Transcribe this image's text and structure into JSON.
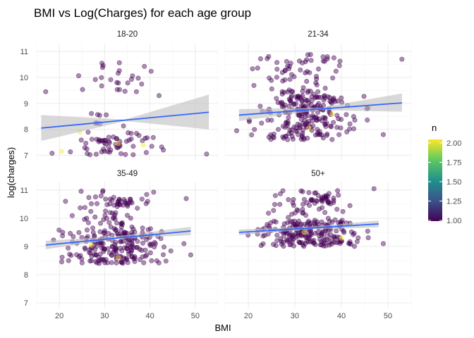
{
  "chart_data": {
    "type": "scatter",
    "title": "BMI vs Log(Charges) for each age group",
    "xlabel": "BMI",
    "ylabel": "log(charges)",
    "xlim": [
      15,
      55
    ],
    "ylim": [
      6.8,
      11.3
    ],
    "x_ticks": [
      "20",
      "30",
      "40",
      "50"
    ],
    "y_ticks": [
      "7",
      "8",
      "9",
      "10",
      "11"
    ],
    "grid": true,
    "legend": {
      "title": "n",
      "position": "right",
      "ticks": [
        "2.00",
        "1.75",
        "1.50",
        "1.25",
        "1.00"
      ],
      "range": [
        1,
        2
      ],
      "colors": [
        "#440154",
        "#3b528b",
        "#21918c",
        "#5ec962",
        "#fde725"
      ]
    },
    "point_color": "#440154",
    "point_highlight_color": "#fde725",
    "fit_color": "#3366ff",
    "band_color": "#bebebe",
    "panels": [
      {
        "name": "18-20",
        "trend": {
          "x": [
            16,
            53
          ],
          "y": [
            8.05,
            8.66
          ]
        },
        "band": {
          "lower": [
            7.55,
            8.32,
            8.0
          ],
          "upper": [
            8.55,
            8.38,
            9.34
          ]
        },
        "clusters": [
          {
            "n": 60,
            "x": [
              17,
              48
            ],
            "y": [
              7.0,
              7.9
            ],
            "seed": 11
          },
          {
            "n": 24,
            "x": [
              20,
              46
            ],
            "y": [
              9.4,
              10.6
            ],
            "seed": 12
          },
          {
            "n": 8,
            "x": [
              18,
              40
            ],
            "y": [
              8.1,
              8.9
            ],
            "seed": 13
          }
        ],
        "points": [
          [
            17,
            9.45
          ],
          [
            52.5,
            7.05
          ],
          [
            42,
            9.3
          ],
          [
            37,
            9.45
          ]
        ],
        "highlights": [
          [
            20.5,
            7.15
          ],
          [
            24.5,
            7.9
          ],
          [
            33,
            7.45
          ],
          [
            38.5,
            7.4
          ]
        ]
      },
      {
        "name": "21-34",
        "trend": {
          "x": [
            18,
            53
          ],
          "y": [
            8.55,
            9.02
          ]
        },
        "band": {
          "lower": [
            8.32,
            8.74,
            8.68
          ],
          "upper": [
            8.78,
            8.84,
            9.38
          ]
        },
        "clusters": [
          {
            "n": 210,
            "x": [
              18,
              48
            ],
            "y": [
              7.6,
              9.3
            ],
            "seed": 21
          },
          {
            "n": 55,
            "x": [
              18,
              46
            ],
            "y": [
              9.5,
              10.9
            ],
            "seed": 22
          },
          {
            "n": 25,
            "x": [
              20,
              45
            ],
            "y": [
              9.0,
              9.5
            ],
            "seed": 23
          }
        ],
        "points": [
          [
            53,
            10.7
          ],
          [
            49,
            7.8
          ],
          [
            17.5,
            7.95
          ]
        ],
        "highlights": [
          [
            33,
            8.05
          ],
          [
            38,
            8.6
          ]
        ]
      },
      {
        "name": "35-49",
        "trend": {
          "x": [
            17,
            49
          ],
          "y": [
            9.05,
            9.55
          ]
        },
        "band": {
          "lower": [
            8.9,
            9.27,
            9.4
          ],
          "upper": [
            9.2,
            9.37,
            9.7
          ]
        },
        "clusters": [
          {
            "n": 200,
            "x": [
              17,
              48
            ],
            "y": [
              8.4,
              9.6
            ],
            "seed": 31
          },
          {
            "n": 60,
            "x": [
              17,
              46
            ],
            "y": [
              9.6,
              11.0
            ],
            "seed": 32
          },
          {
            "n": 20,
            "x": [
              30,
              40
            ],
            "y": [
              10.45,
              10.7
            ],
            "seed": 33
          }
        ],
        "points": [
          [
            48,
            10.7
          ],
          [
            47.5,
            9.1
          ],
          [
            49,
            8.7
          ]
        ],
        "highlights": [
          [
            27,
            9.05
          ],
          [
            33,
            8.6
          ]
        ]
      },
      {
        "name": "50+",
        "trend": {
          "x": [
            18,
            48
          ],
          "y": [
            9.5,
            9.8
          ]
        },
        "band": {
          "lower": [
            9.4,
            9.6,
            9.68
          ],
          "upper": [
            9.6,
            9.7,
            9.92
          ]
        },
        "clusters": [
          {
            "n": 200,
            "x": [
              18,
              48
            ],
            "y": [
              9.0,
              9.9
            ],
            "seed": 41
          },
          {
            "n": 50,
            "x": [
              22,
              44
            ],
            "y": [
              9.9,
              11.0
            ],
            "seed": 42
          },
          {
            "n": 20,
            "x": [
              33,
              40
            ],
            "y": [
              10.55,
              10.85
            ],
            "seed": 43
          }
        ],
        "points": [
          [
            47,
            11.05
          ],
          [
            49,
            9.1
          ]
        ],
        "highlights": [
          [
            32,
            9.5
          ],
          [
            40,
            9.3
          ]
        ]
      }
    ]
  }
}
